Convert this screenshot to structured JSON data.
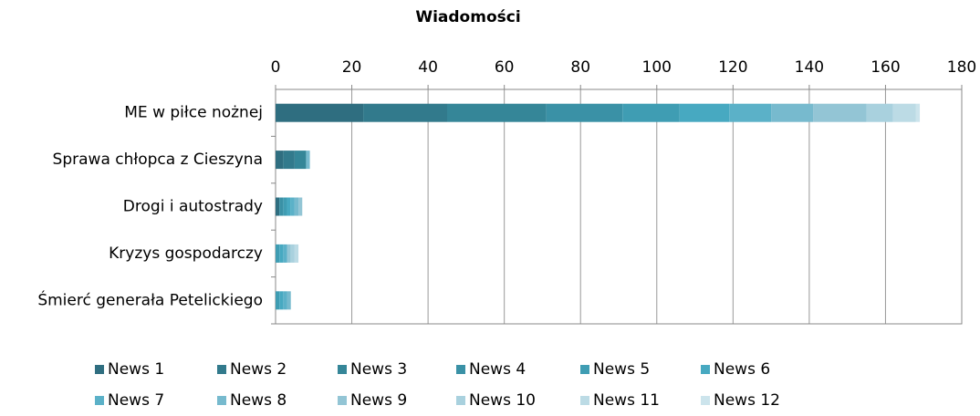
{
  "chart_data": {
    "type": "stacked-bar-horizontal",
    "title": "Wiadomości",
    "categories": [
      "ME w piłce nożnej",
      "Sprawa chłopca z Cieszyna",
      "Drogi i autostrady",
      "Kryzys gospodarczy",
      "Śmierć generała Petelickiego"
    ],
    "series": [
      {
        "name": "News 1",
        "color": "#2f6e80",
        "values": [
          23,
          2,
          1,
          0,
          0
        ]
      },
      {
        "name": "News 2",
        "color": "#327a8c",
        "values": [
          22,
          3,
          0,
          0,
          0
        ]
      },
      {
        "name": "News 3",
        "color": "#358698",
        "values": [
          26,
          3,
          0,
          0,
          0
        ]
      },
      {
        "name": "News 4",
        "color": "#3a91a6",
        "values": [
          20,
          0,
          1,
          0,
          0
        ]
      },
      {
        "name": "News 5",
        "color": "#3f9db3",
        "values": [
          15,
          0,
          1,
          1,
          1
        ]
      },
      {
        "name": "News 6",
        "color": "#47a9c1",
        "values": [
          13,
          0,
          1,
          1,
          1
        ]
      },
      {
        "name": "News 7",
        "color": "#5bb1c8",
        "values": [
          11,
          0,
          1,
          1,
          1
        ]
      },
      {
        "name": "News 8",
        "color": "#77bace",
        "values": [
          11,
          1,
          1,
          0,
          1
        ]
      },
      {
        "name": "News 9",
        "color": "#93c5d5",
        "values": [
          14,
          0,
          1,
          1,
          0
        ]
      },
      {
        "name": "News 10",
        "color": "#a9d1de",
        "values": [
          7,
          0,
          0,
          1,
          0
        ]
      },
      {
        "name": "News 11",
        "color": "#bcdbe5",
        "values": [
          6,
          0,
          0,
          1,
          0
        ]
      },
      {
        "name": "News 12",
        "color": "#cce4ec",
        "values": [
          1,
          0,
          0,
          0,
          0
        ]
      }
    ],
    "xlim": [
      0,
      180
    ],
    "xticks": [
      0,
      20,
      40,
      60,
      80,
      100,
      120,
      140,
      160,
      180
    ],
    "grid": true,
    "legend": "bottom"
  }
}
